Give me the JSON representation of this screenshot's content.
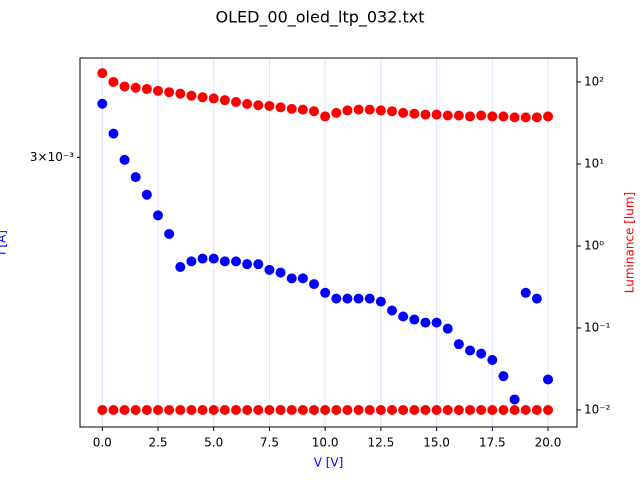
{
  "chart_data": {
    "type": "scatter",
    "title": "OLED_00_oled_ltp_032.txt",
    "x_label": "V [V]",
    "y_label": "I [A]",
    "y2_label": "Luminance [lum]",
    "x": [
      0,
      0.5,
      1,
      1.5,
      2,
      2.5,
      3,
      3.5,
      4,
      4.5,
      5,
      5.5,
      6,
      6.5,
      7,
      7.5,
      8,
      8.5,
      9,
      9.5,
      10,
      10.5,
      11,
      11.5,
      12,
      12.5,
      13,
      13.5,
      14,
      14.5,
      15,
      15.5,
      16,
      16.5,
      17,
      17.5,
      18,
      18.5,
      19,
      19.5,
      20
    ],
    "series": [
      {
        "color": "#0000ff",
        "axis": "y",
        "values": [
          0.00323,
          0.0031,
          0.00299,
          0.00292,
          0.00285,
          0.00277,
          0.0027,
          0.00258,
          0.0026,
          0.00261,
          0.00261,
          0.0026,
          0.0026,
          0.00259,
          0.00259,
          0.00257,
          0.00256,
          0.00254,
          0.00254,
          0.00252,
          0.00249,
          0.00247,
          0.00247,
          0.00247,
          0.00247,
          0.00246,
          0.00243,
          0.00241,
          0.0024,
          0.00239,
          0.00239,
          0.00237,
          0.00232,
          0.0023,
          0.00229,
          0.00227,
          0.00222,
          0.00215,
          0.00249,
          0.00247,
          0.00221
        ]
      },
      {
        "color": "#ff0000",
        "axis": "y2",
        "values": [
          128,
          100,
          88,
          85,
          82,
          78,
          75,
          72,
          68,
          65,
          63,
          60,
          57,
          54,
          52,
          51,
          49,
          47,
          46,
          44,
          38,
          42,
          45,
          46,
          46,
          45,
          44,
          42,
          41,
          40,
          40,
          39,
          39,
          38,
          39,
          38,
          38,
          37,
          37,
          37,
          38
        ]
      },
      {
        "color": "#ff0000",
        "axis": "y2",
        "values": [
          0.01,
          0.01,
          0.01,
          0.01,
          0.01,
          0.01,
          0.01,
          0.01,
          0.01,
          0.01,
          0.01,
          0.01,
          0.01,
          0.01,
          0.01,
          0.01,
          0.01,
          0.01,
          0.01,
          0.01,
          0.01,
          0.01,
          0.01,
          0.01,
          0.01,
          0.01,
          0.01,
          0.01,
          0.01,
          0.01,
          0.01,
          0.01,
          0.01,
          0.01,
          0.01,
          0.01,
          0.01,
          0.01,
          0.01,
          0.01,
          0.01
        ]
      }
    ],
    "xlim": [
      -1,
      21.3
    ],
    "xticks": [
      {
        "value": 0,
        "label": "0.0"
      },
      {
        "value": 2.5,
        "label": "2.5"
      },
      {
        "value": 5,
        "label": "5.0"
      },
      {
        "value": 7.5,
        "label": "7.5"
      },
      {
        "value": 10,
        "label": "10.0"
      },
      {
        "value": 12.5,
        "label": "12.5"
      },
      {
        "value": 15,
        "label": "15.0"
      },
      {
        "value": 17.5,
        "label": "17.5"
      },
      {
        "value": 20,
        "label": "20.0"
      }
    ],
    "ylim": [
      0.00207,
      0.00344
    ],
    "yticks": [
      {
        "value": 0.003,
        "label": "3×10⁻³"
      }
    ],
    "y_log": true,
    "y2lim": [
      0.0062,
      196
    ],
    "y2ticks": [
      {
        "value": 0.01,
        "label": "10⁻²"
      },
      {
        "value": 0.1,
        "label": "10⁻¹"
      },
      {
        "value": 1,
        "label": "10⁰"
      },
      {
        "value": 10,
        "label": "10¹"
      },
      {
        "value": 100,
        "label": "10²"
      }
    ],
    "y2_log": true,
    "grid": true,
    "grid_color": "#e0e0ff",
    "x_label_color": "#0000ff",
    "y_label_color": "#0000ff",
    "y2_label_color": "#ff0000"
  }
}
